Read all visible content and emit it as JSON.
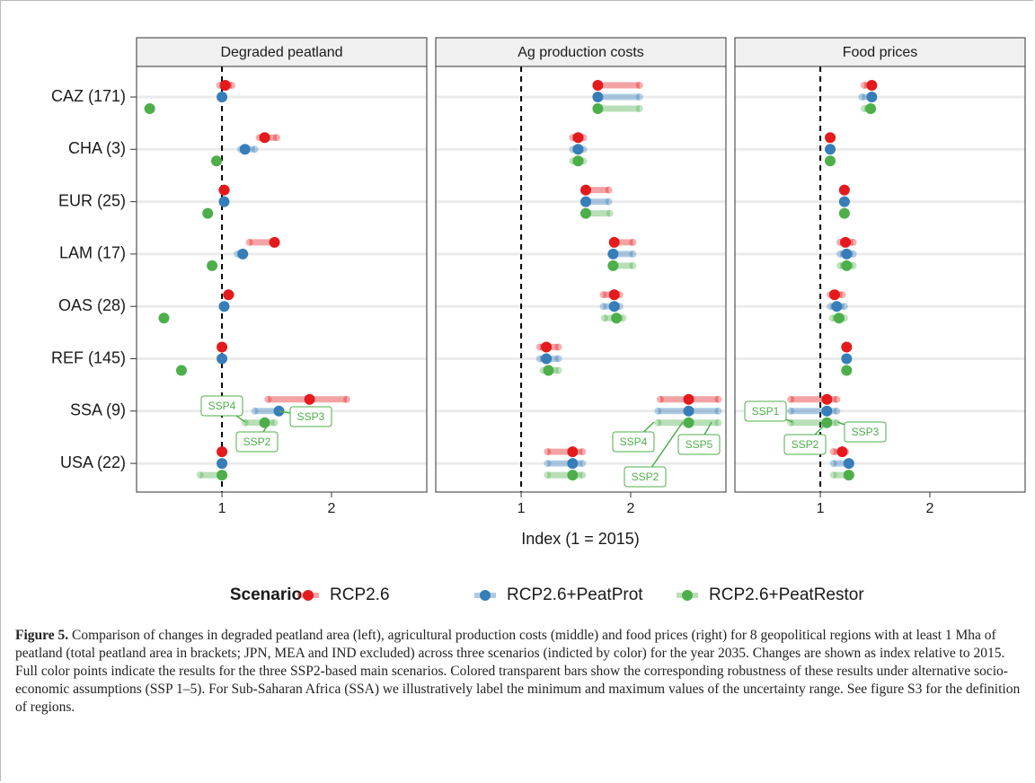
{
  "categories": [
    "CAZ (171)",
    "CHA (3)",
    "EUR (25)",
    "LAM (17)",
    "OAS (28)",
    "REF (145)",
    "SSA (9)",
    "USA (22)"
  ],
  "x_label": "Index (1 = 2015)",
  "legend": {
    "title": "Scenario",
    "series": [
      {
        "name": "RCP2.6",
        "color": "#e41a1c"
      },
      {
        "name": "RCP2.6+PeatProt",
        "color": "#377eb8"
      },
      {
        "name": "RCP2.6+PeatRestor",
        "color": "#4daf4a"
      }
    ]
  },
  "chart_data": [
    {
      "type": "dot-range",
      "title": "Degraded peatland",
      "xlim": [
        0.22,
        2.87
      ],
      "xticks": [
        1,
        2
      ],
      "reference_line": 1,
      "grid": true,
      "series": [
        {
          "values": [
            1.03,
            1.39,
            1.02,
            1.48,
            1.06,
            1.0,
            1.8,
            1.0
          ],
          "lows": [
            0.98,
            1.34,
            1.0,
            1.25,
            1.04,
            1.0,
            1.42,
            1.0
          ],
          "highs": [
            1.09,
            1.5,
            1.04,
            1.48,
            1.08,
            1.0,
            2.14,
            1.0
          ]
        },
        {
          "values": [
            1.0,
            1.21,
            1.02,
            1.19,
            1.02,
            1.0,
            1.52,
            1.0
          ],
          "lows": [
            1.0,
            1.17,
            1.01,
            1.14,
            1.01,
            1.0,
            1.3,
            1.0
          ],
          "highs": [
            1.0,
            1.3,
            1.03,
            1.2,
            1.03,
            1.0,
            1.52,
            1.0
          ]
        },
        {
          "values": [
            0.34,
            0.95,
            0.87,
            0.91,
            0.47,
            0.63,
            1.39,
            1.0
          ],
          "lows": [
            0.34,
            0.95,
            0.87,
            0.91,
            0.47,
            0.63,
            1.21,
            0.8
          ],
          "highs": [
            0.34,
            0.95,
            0.87,
            0.91,
            0.47,
            0.63,
            1.48,
            1.0
          ]
        }
      ],
      "annotations": [
        "SSP4",
        "SSP3",
        "SSP2"
      ]
    },
    {
      "type": "dot-range",
      "title": "Ag production costs",
      "xlim": [
        0.22,
        2.87
      ],
      "xticks": [
        1,
        2
      ],
      "reference_line": 1,
      "grid": true,
      "series": [
        {
          "values": [
            1.7,
            1.52,
            1.59,
            1.85,
            1.85,
            1.23,
            2.53,
            1.47
          ],
          "lows": [
            1.7,
            1.47,
            1.59,
            1.85,
            1.75,
            1.17,
            2.27,
            1.24
          ],
          "highs": [
            2.08,
            1.57,
            1.8,
            2.02,
            1.9,
            1.34,
            2.8,
            1.56
          ]
        },
        {
          "values": [
            1.7,
            1.52,
            1.59,
            1.84,
            1.85,
            1.23,
            2.53,
            1.47
          ],
          "lows": [
            1.7,
            1.47,
            1.59,
            1.82,
            1.75,
            1.17,
            2.25,
            1.24
          ],
          "highs": [
            2.08,
            1.57,
            1.8,
            2.02,
            1.9,
            1.34,
            2.8,
            1.56
          ]
        },
        {
          "values": [
            1.7,
            1.52,
            1.59,
            1.84,
            1.87,
            1.25,
            2.53,
            1.47
          ],
          "lows": [
            1.7,
            1.47,
            1.59,
            1.82,
            1.76,
            1.2,
            2.25,
            1.24
          ],
          "highs": [
            2.08,
            1.57,
            1.81,
            2.02,
            1.93,
            1.34,
            2.8,
            1.56
          ]
        }
      ],
      "annotations": [
        "SSP4",
        "SSP5",
        "SSP2"
      ]
    },
    {
      "type": "dot-range",
      "title": "Food prices",
      "xlim": [
        0.22,
        2.87
      ],
      "xticks": [
        1,
        2
      ],
      "reference_line": 1,
      "grid": true,
      "series": [
        {
          "values": [
            1.47,
            1.09,
            1.22,
            1.23,
            1.13,
            1.24,
            1.06,
            1.2
          ],
          "lows": [
            1.4,
            1.08,
            1.21,
            1.18,
            1.09,
            1.23,
            0.73,
            1.12
          ],
          "highs": [
            1.47,
            1.1,
            1.23,
            1.3,
            1.2,
            1.25,
            1.15,
            1.23
          ]
        },
        {
          "values": [
            1.47,
            1.09,
            1.22,
            1.24,
            1.15,
            1.24,
            1.06,
            1.26
          ],
          "lows": [
            1.38,
            1.08,
            1.21,
            1.18,
            1.09,
            1.23,
            0.73,
            1.12
          ],
          "highs": [
            1.47,
            1.1,
            1.23,
            1.3,
            1.22,
            1.25,
            1.15,
            1.28
          ]
        },
        {
          "values": [
            1.46,
            1.09,
            1.22,
            1.24,
            1.17,
            1.24,
            1.06,
            1.26
          ],
          "lows": [
            1.4,
            1.08,
            1.21,
            1.18,
            1.11,
            1.23,
            0.73,
            1.12
          ],
          "highs": [
            1.47,
            1.1,
            1.23,
            1.3,
            1.22,
            1.25,
            1.15,
            1.28
          ]
        }
      ],
      "annotations": [
        "SSP1",
        "SSP2",
        "SSP3"
      ]
    }
  ],
  "caption": {
    "label": "Figure 5.",
    "text": "Comparison of changes in degraded peatland area (left), agricultural production costs (middle) and food prices (right) for 8 geopolitical regions with at least 1 Mha of peatland (total peatland area in brackets; JPN, MEA and IND excluded) across three scenarios (indicted by color) for the year 2035. Changes are shown as index relative to 2015. Full color points indicate the results for the three SSP2-based main scenarios. Colored transparent bars show the corresponding robustness of these results under alternative socio-economic assumptions (SSP 1–5). For Sub-Saharan Africa (SSA) we illustratively label the minimum and maximum values of the uncertainty range. See figure S3 for the definition of regions."
  }
}
